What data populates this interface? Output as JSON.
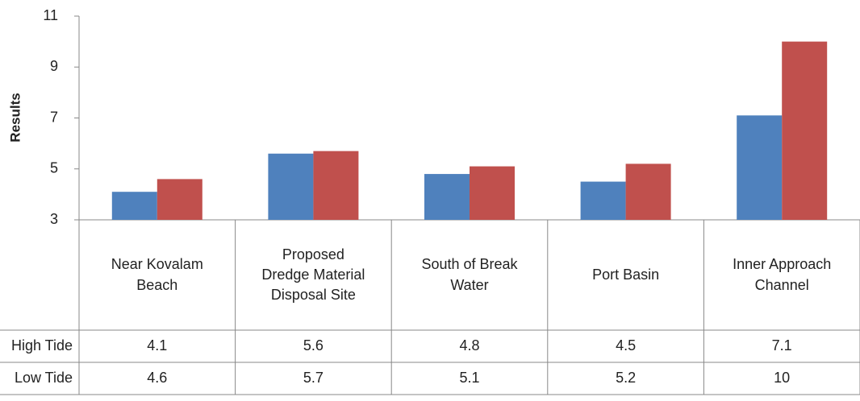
{
  "chart_data": {
    "type": "bar",
    "y_label": "Results",
    "categories": [
      "Near Kovalam Beach",
      "Proposed Dredge Material Disposal Site",
      "South of Break Water",
      "Port Basin",
      "Inner Approach Channel"
    ],
    "series": [
      {
        "name": "High Tide",
        "color": "#4f81bd",
        "values": [
          4.1,
          5.6,
          4.8,
          4.5,
          7.1
        ]
      },
      {
        "name": "Low Tide",
        "color": "#c0504d",
        "values": [
          4.6,
          5.7,
          5.1,
          5.2,
          10
        ]
      }
    ],
    "ylim": [
      3,
      11
    ],
    "yticks": [
      3,
      5,
      7,
      9,
      11
    ],
    "grid": false
  }
}
